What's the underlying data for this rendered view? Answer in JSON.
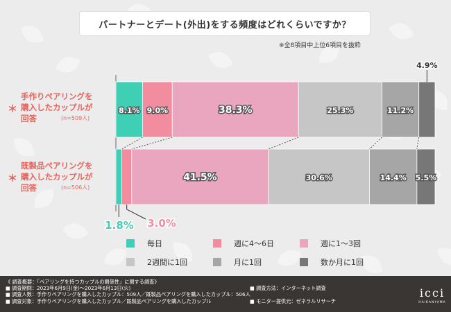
{
  "title": "パートナーとデート(外出)をする頻度はどれくらいですか？",
  "note": "※全8項目中上位6項目を抜粋",
  "groups": [
    {
      "lines": [
        "手作りペアリングを",
        "購入したカップルが",
        "回答"
      ],
      "n": "(n=509人)",
      "asterisk": "＊"
    },
    {
      "lines": [
        "既製品ペアリングを",
        "購入したカップルが",
        "回答"
      ],
      "n": "(n=506人)",
      "asterisk": "＊"
    }
  ],
  "chart_data": {
    "type": "bar",
    "orientation": "horizontal-stacked",
    "categories": [
      "手作りペアリングを購入したカップルが回答 (n=509人)",
      "既製品ペアリングを購入したカップルが回答 (n=506人)"
    ],
    "series": [
      {
        "name": "毎日",
        "color": "#3ecfb4",
        "values": [
          8.1,
          1.8
        ]
      },
      {
        "name": "週に4〜6日",
        "color": "#f28da0",
        "values": [
          9.0,
          3.0
        ]
      },
      {
        "name": "週に1〜3回",
        "color": "#eaa6be",
        "values": [
          38.3,
          41.5
        ]
      },
      {
        "name": "2週間に1回",
        "color": "#c6c6c6",
        "values": [
          25.3,
          30.6
        ]
      },
      {
        "name": "月に1回",
        "color": "#a6a6a6",
        "values": [
          11.2,
          14.4
        ]
      },
      {
        "name": "数か月に1回",
        "color": "#777777",
        "values": [
          4.9,
          5.5
        ]
      }
    ],
    "value_labels": [
      [
        "8.1%",
        "9.0%",
        "38.3%",
        "25.3%",
        "11.2%",
        "4.9%"
      ],
      [
        "1.8%",
        "3.0%",
        "41.5%",
        "30.6%",
        "14.4%",
        "5.5%"
      ]
    ],
    "legend_position": "bottom"
  },
  "footer": {
    "title": "《 調査概要：「ペアリングを持つカップルの関係性」に関する調査》",
    "period": "■ 調査期間：2023年6月9日(金)〜2023年6月13日(火)",
    "method": "■ 調査方法：インターネット調査",
    "people": "■ 調査人数：手作りペアリングを購入したカップル：509人／既製品ペアリングを購入したカップル：506人",
    "target": "■ 調査対象：手作りペアリングを購入したカップル／既製品ペアリングを購入したカップル",
    "provider": "■ モニター提供元：ゼネラルリサーチ"
  },
  "logo": {
    "brand": "icci",
    "sub": "HAIKANYAMA"
  }
}
